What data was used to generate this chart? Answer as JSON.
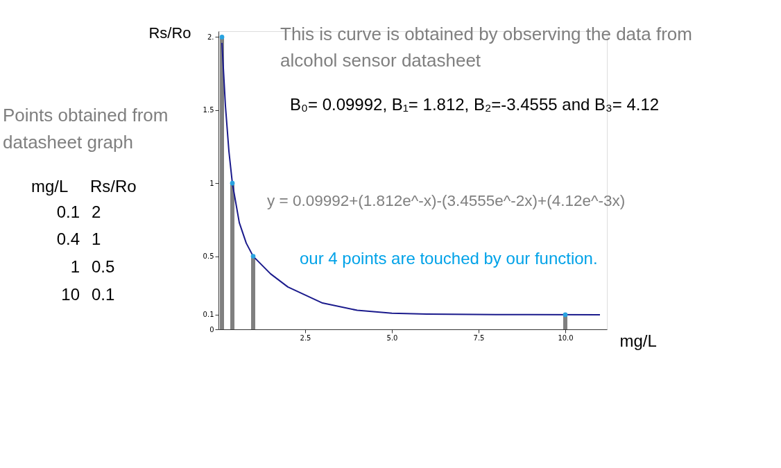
{
  "chart_data": {
    "type": "line",
    "xlabel": "mg/L",
    "ylabel": "Rs/Ro",
    "xlim": [
      0,
      11.2
    ],
    "ylim": [
      0,
      2.04
    ],
    "xticks": [
      2.5,
      {
        "value": 5,
        "label": "5.0"
      },
      7.5,
      {
        "value": 10,
        "label": "10.0"
      }
    ],
    "yticks": [
      0,
      0.1,
      0.5,
      1,
      1.5,
      {
        "value": 2,
        "label": "2."
      }
    ],
    "grid": false,
    "series": [
      {
        "type": "bar",
        "color": "#808080",
        "x": [
          0.1,
          0.4,
          1,
          10
        ],
        "values": [
          2,
          1,
          0.5,
          0.1
        ]
      },
      {
        "color": "#1a1a8c",
        "line_style": "solid",
        "x": [
          0.1,
          0.2,
          0.3,
          0.4,
          0.6,
          0.8,
          1,
          1.5,
          2,
          3,
          4,
          5,
          6,
          8,
          11
        ],
        "values": [
          1.96,
          1.53,
          1.22,
          1.0,
          0.73,
          0.59,
          0.5,
          0.38,
          0.29,
          0.18,
          0.13,
          0.11,
          0.104,
          0.101,
          0.1
        ]
      },
      {
        "type": "scatter",
        "color": "#29a3e0",
        "marker": "circle",
        "x": [
          0.1,
          0.4,
          1,
          10
        ],
        "values": [
          2,
          1,
          0.5,
          0.1
        ]
      }
    ],
    "annotations": [
      "This is curve is obtained by observing the data from",
      "alcohol sensor datasheet",
      "B₀= 0.09992,  B₁= 1.812, B₂=-3.4555 and B₃= 4.12",
      "y = 0.09992+(1.812e^-x)-(3.4555e^-2x)+(4.12e^-3x)",
      "our 4 points are touched by our function.",
      "Points obtained from",
      "datasheet graph",
      "mg/L",
      "Rs/Ro",
      "0.1",
      "2",
      "0.4",
      "1",
      "1",
      "0.5",
      "10",
      "0.1"
    ]
  }
}
